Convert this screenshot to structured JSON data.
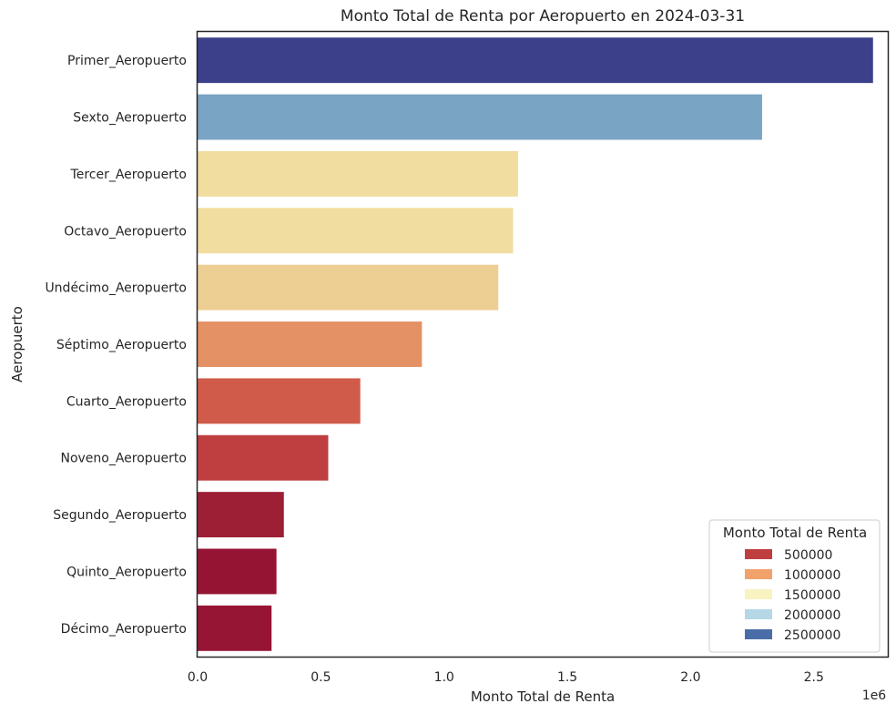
{
  "chart_data": {
    "type": "bar",
    "orientation": "horizontal",
    "title": "Monto Total de Renta por Aeropuerto en 2024-03-31",
    "xlabel": "Monto Total de Renta",
    "ylabel": "Aeropuerto",
    "x_offset_label": "1e6",
    "xlim": [
      0,
      2.8
    ],
    "x_ticks": [
      "0.0",
      "0.5",
      "1.0",
      "1.5",
      "2.0",
      "2.5"
    ],
    "grid": false,
    "categories": [
      "Primer_Aeropuerto",
      "Sexto_Aeropuerto",
      "Tercer_Aeropuerto",
      "Octavo_Aeropuerto",
      "Undécimo_Aeropuerto",
      "Séptimo_Aeropuerto",
      "Cuarto_Aeropuerto",
      "Noveno_Aeropuerto",
      "Segundo_Aeropuerto",
      "Quinto_Aeropuerto",
      "Décimo_Aeropuerto"
    ],
    "values": [
      2.74,
      2.29,
      1.3,
      1.28,
      1.22,
      0.91,
      0.66,
      0.53,
      0.35,
      0.32,
      0.3
    ],
    "bar_colors": [
      "#3c3f8a",
      "#79a4c4",
      "#f1dd9f",
      "#f1dd9f",
      "#eecf93",
      "#e49165",
      "#d05b4a",
      "#bf3f40",
      "#9c1f35",
      "#951433",
      "#961434"
    ],
    "legend": {
      "title": "Monto Total de Renta",
      "position": "lower-right",
      "entries": [
        {
          "label": "500000",
          "color": "#bf3f40"
        },
        {
          "label": "1000000",
          "color": "#f1a26a"
        },
        {
          "label": "1500000",
          "color": "#f8f3c0"
        },
        {
          "label": "2000000",
          "color": "#b5d7e6"
        },
        {
          "label": "2500000",
          "color": "#4a6da8"
        }
      ]
    }
  }
}
